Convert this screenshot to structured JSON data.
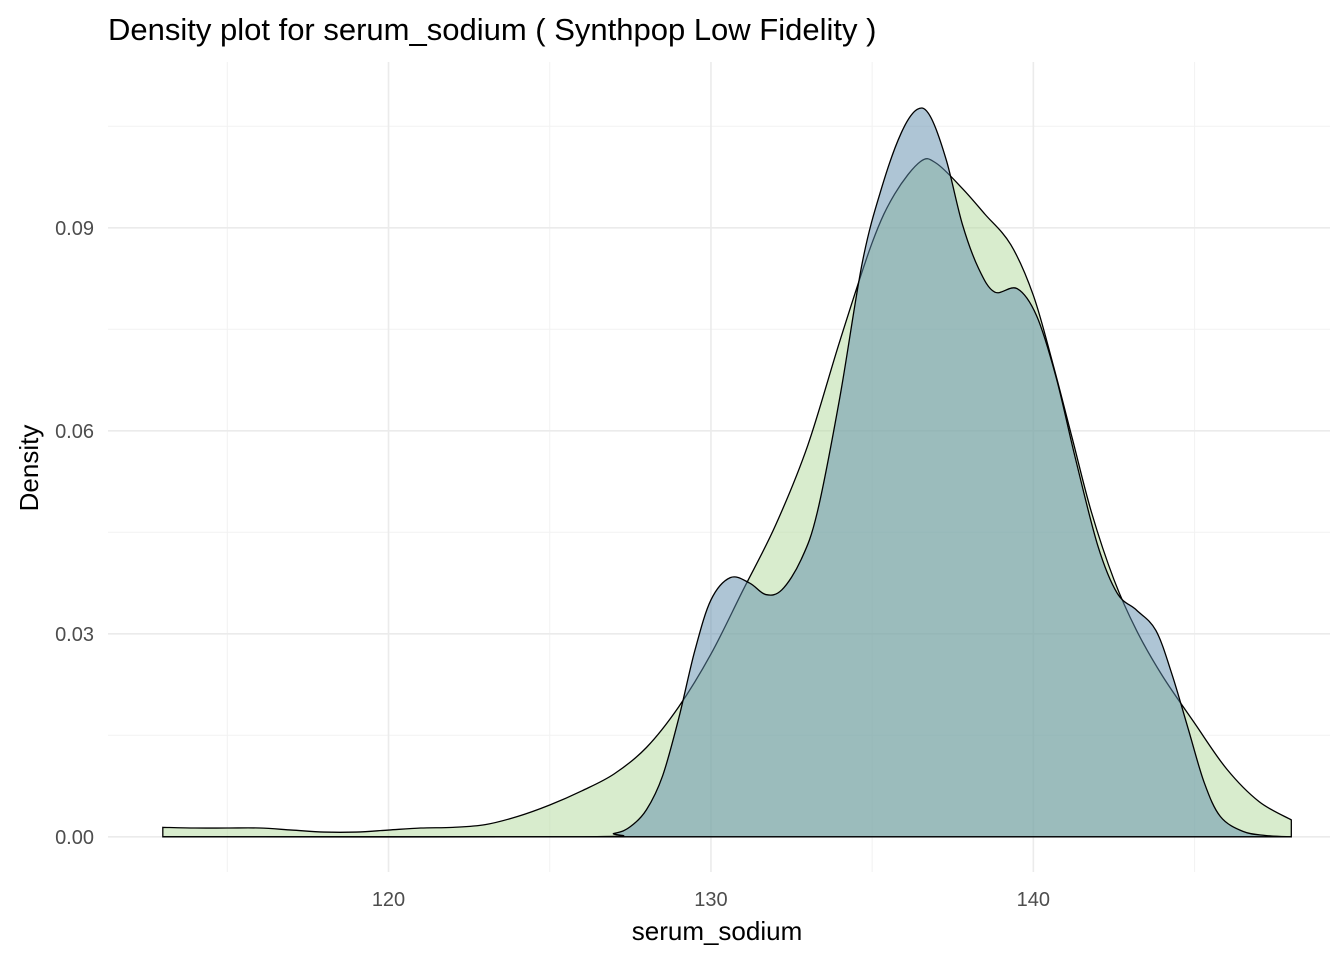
{
  "chart_data": {
    "type": "area",
    "title": "Density plot for serum_sodium ( Synthpop Low Fidelity )",
    "xlabel": "serum_sodium",
    "ylabel": "Density",
    "xlim": [
      111.3,
      149.2
    ],
    "ylim": [
      -0.0052,
      0.1145
    ],
    "x_ticks": [
      120,
      130,
      140
    ],
    "x_tick_labels": [
      "120",
      "130",
      "140"
    ],
    "x_minor_ticks": [
      115,
      125,
      135,
      145
    ],
    "y_ticks": [
      0.0,
      0.03,
      0.06,
      0.09
    ],
    "y_tick_labels": [
      "0.00",
      "0.03",
      "0.06",
      "0.09"
    ],
    "y_minor_ticks": [
      0.015,
      0.045,
      0.075,
      0.105
    ],
    "grid": true,
    "legend": "none",
    "series": [
      {
        "color": "#b2d99c",
        "points": [
          [
            113,
            0.0014
          ],
          [
            114,
            0.0013
          ],
          [
            115,
            0.0013
          ],
          [
            116,
            0.0013
          ],
          [
            117,
            0.001
          ],
          [
            118,
            0.0007
          ],
          [
            119,
            0.0007
          ],
          [
            120,
            0.001
          ],
          [
            121,
            0.0013
          ],
          [
            122,
            0.0014
          ],
          [
            123,
            0.0018
          ],
          [
            124,
            0.003
          ],
          [
            125,
            0.0047
          ],
          [
            126,
            0.0068
          ],
          [
            127,
            0.0093
          ],
          [
            128,
            0.0132
          ],
          [
            129,
            0.0192
          ],
          [
            130,
            0.027
          ],
          [
            131,
            0.0365
          ],
          [
            132,
            0.046
          ],
          [
            133,
            0.0578
          ],
          [
            134,
            0.0733
          ],
          [
            135,
            0.0878
          ],
          [
            135.7,
            0.095
          ],
          [
            136.5,
            0.0998
          ],
          [
            137,
            0.0995
          ],
          [
            137.8,
            0.0958
          ],
          [
            138.5,
            0.092
          ],
          [
            139.3,
            0.0875
          ],
          [
            140,
            0.08
          ],
          [
            140.6,
            0.07
          ],
          [
            141.2,
            0.059
          ],
          [
            141.8,
            0.048
          ],
          [
            142.5,
            0.038
          ],
          [
            143.2,
            0.0305
          ],
          [
            144,
            0.0238
          ],
          [
            145,
            0.0168
          ],
          [
            146,
            0.01
          ],
          [
            147,
            0.0052
          ],
          [
            148,
            0.0025
          ]
        ]
      },
      {
        "color": "#5e8cab",
        "points": [
          [
            113,
            0.0
          ],
          [
            126,
            0.0
          ],
          [
            127,
            0.0005
          ],
          [
            127.5,
            0.0015
          ],
          [
            128,
            0.004
          ],
          [
            128.5,
            0.009
          ],
          [
            129,
            0.0175
          ],
          [
            129.5,
            0.0275
          ],
          [
            130,
            0.035
          ],
          [
            130.6,
            0.0383
          ],
          [
            131.2,
            0.0375
          ],
          [
            131.7,
            0.0358
          ],
          [
            132.2,
            0.0365
          ],
          [
            132.8,
            0.041
          ],
          [
            133.3,
            0.048
          ],
          [
            134,
            0.065
          ],
          [
            134.7,
            0.085
          ],
          [
            135.3,
            0.096
          ],
          [
            135.9,
            0.104
          ],
          [
            136.4,
            0.1075
          ],
          [
            136.8,
            0.1065
          ],
          [
            137.3,
            0.1
          ],
          [
            137.8,
            0.0905
          ],
          [
            138.3,
            0.084
          ],
          [
            138.8,
            0.0805
          ],
          [
            139.5,
            0.081
          ],
          [
            140.1,
            0.077
          ],
          [
            140.7,
            0.068
          ],
          [
            141.3,
            0.056
          ],
          [
            142,
            0.043
          ],
          [
            142.6,
            0.036
          ],
          [
            143.2,
            0.0335
          ],
          [
            143.8,
            0.0305
          ],
          [
            144.3,
            0.024
          ],
          [
            144.8,
            0.016
          ],
          [
            145.3,
            0.008
          ],
          [
            145.8,
            0.003
          ],
          [
            146.5,
            0.0008
          ],
          [
            147.2,
            0.0002
          ],
          [
            148,
            0.0
          ]
        ]
      }
    ]
  }
}
